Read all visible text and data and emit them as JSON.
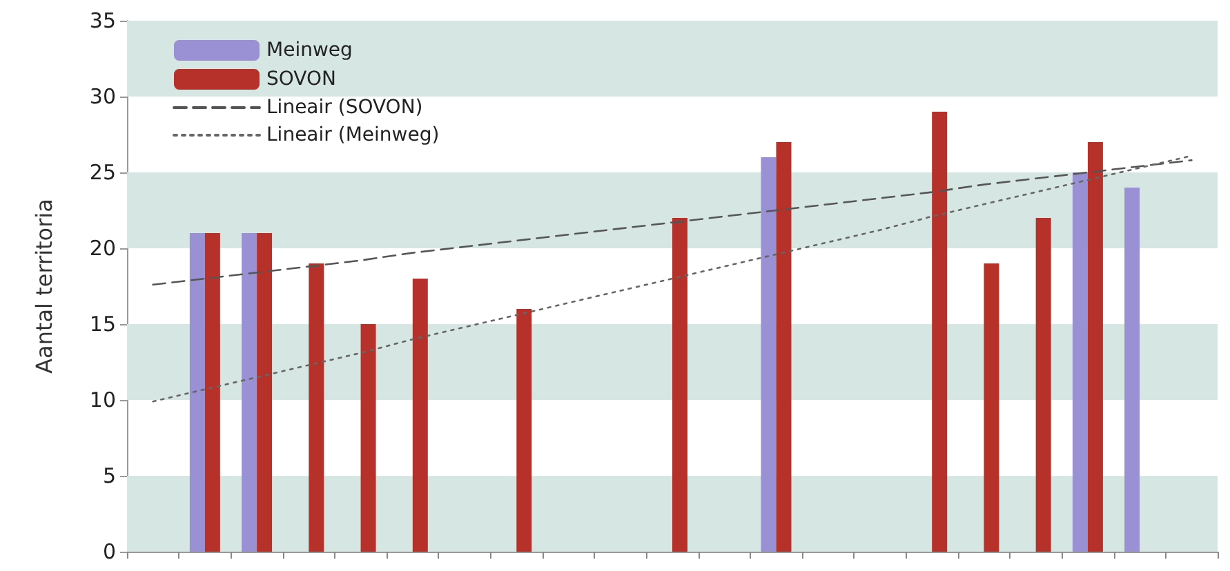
{
  "chart_data": {
    "type": "bar",
    "ylabel": "Aantal territoria",
    "categories": [
      null,
      null,
      null,
      null,
      null,
      null,
      null,
      null,
      null,
      null,
      null,
      null,
      null,
      null,
      null,
      null,
      null,
      null,
      null,
      null,
      null
    ],
    "series": [
      {
        "name": "Meinweg",
        "color": "#9a90d4",
        "values": [
          null,
          21,
          21,
          null,
          null,
          null,
          null,
          null,
          null,
          null,
          null,
          null,
          26,
          null,
          null,
          null,
          null,
          null,
          25,
          24,
          null
        ]
      },
      {
        "name": "SOVON",
        "color": "#b5312a",
        "values": [
          null,
          21,
          21,
          19,
          15,
          18,
          null,
          16,
          null,
          null,
          22,
          null,
          27,
          null,
          null,
          29,
          19,
          22,
          27,
          null,
          null
        ]
      },
      {
        "name": "Lineair (SOVON)",
        "type": "line",
        "color": "#555555",
        "line_style": "dashed",
        "marker": "none",
        "values": [
          17.6,
          18.0,
          18.4,
          18.8,
          19.2,
          19.7,
          20.1,
          20.5,
          20.9,
          21.3,
          21.7,
          22.1,
          22.5,
          22.9,
          23.3,
          23.7,
          24.2,
          24.6,
          25.0,
          25.4,
          25.8
        ]
      },
      {
        "name": "Lineair (Meinweg)",
        "type": "line",
        "color": "#666666",
        "line_style": "dotted",
        "marker": "none",
        "values": [
          9.9,
          10.7,
          11.5,
          12.3,
          13.1,
          14.0,
          14.8,
          15.6,
          16.4,
          17.2,
          18.0,
          18.8,
          19.6,
          20.4,
          21.2,
          22.1,
          22.9,
          23.7,
          24.5,
          25.3,
          26.1
        ]
      }
    ],
    "ylim": [
      0,
      35
    ],
    "yticks": [
      0,
      5,
      10,
      15,
      20,
      25,
      30,
      35
    ],
    "bands": [
      {
        "axis": "y",
        "from": 0,
        "to": 5,
        "color": "#d6e7e3"
      },
      {
        "axis": "y",
        "from": 10,
        "to": 15,
        "color": "#d6e7e3"
      },
      {
        "axis": "y",
        "from": 20,
        "to": 25,
        "color": "#d6e7e3"
      },
      {
        "axis": "y",
        "from": 30,
        "to": 35,
        "color": "#d6e7e3"
      }
    ],
    "legend": "top left",
    "grid": false
  }
}
